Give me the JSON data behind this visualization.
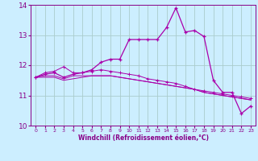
{
  "title": "",
  "xlabel": "Windchill (Refroidissement éolien,°C)",
  "background_color": "#cceeff",
  "grid_color": "#aacccc",
  "line_color": "#aa00aa",
  "x_values": [
    0,
    1,
    2,
    3,
    4,
    5,
    6,
    7,
    8,
    9,
    10,
    11,
    12,
    13,
    14,
    15,
    16,
    17,
    18,
    19,
    20,
    21,
    22,
    23
  ],
  "series1": [
    11.6,
    11.75,
    11.8,
    11.95,
    11.75,
    11.75,
    11.8,
    11.85,
    11.8,
    11.75,
    11.7,
    11.65,
    11.55,
    11.5,
    11.45,
    11.4,
    11.3,
    11.2,
    11.15,
    11.1,
    11.05,
    11.0,
    10.95,
    10.9
  ],
  "series2": [
    11.6,
    11.7,
    11.75,
    11.6,
    11.7,
    11.75,
    11.85,
    12.1,
    12.2,
    12.2,
    12.85,
    12.85,
    12.85,
    12.85,
    13.25,
    13.9,
    13.1,
    13.15,
    12.95,
    11.5,
    11.1,
    11.1,
    10.4,
    10.65
  ],
  "series3": [
    11.6,
    11.65,
    11.65,
    11.55,
    11.65,
    11.65,
    11.65,
    11.65,
    11.65,
    11.6,
    11.55,
    11.5,
    11.45,
    11.4,
    11.35,
    11.3,
    11.25,
    11.2,
    11.1,
    11.05,
    11.0,
    10.95,
    10.9,
    10.85
  ],
  "series4": [
    11.6,
    11.6,
    11.6,
    11.5,
    11.55,
    11.6,
    11.65,
    11.65,
    11.65,
    11.6,
    11.55,
    11.5,
    11.45,
    11.4,
    11.35,
    11.3,
    11.25,
    11.2,
    11.1,
    11.05,
    11.0,
    10.95,
    10.9,
    10.85
  ],
  "ylim": [
    10.0,
    14.0
  ],
  "xlim": [
    -0.5,
    23.5
  ],
  "yticks": [
    10,
    11,
    12,
    13,
    14
  ],
  "xticks": [
    0,
    1,
    2,
    3,
    4,
    5,
    6,
    7,
    8,
    9,
    10,
    11,
    12,
    13,
    14,
    15,
    16,
    17,
    18,
    19,
    20,
    21,
    22,
    23
  ]
}
